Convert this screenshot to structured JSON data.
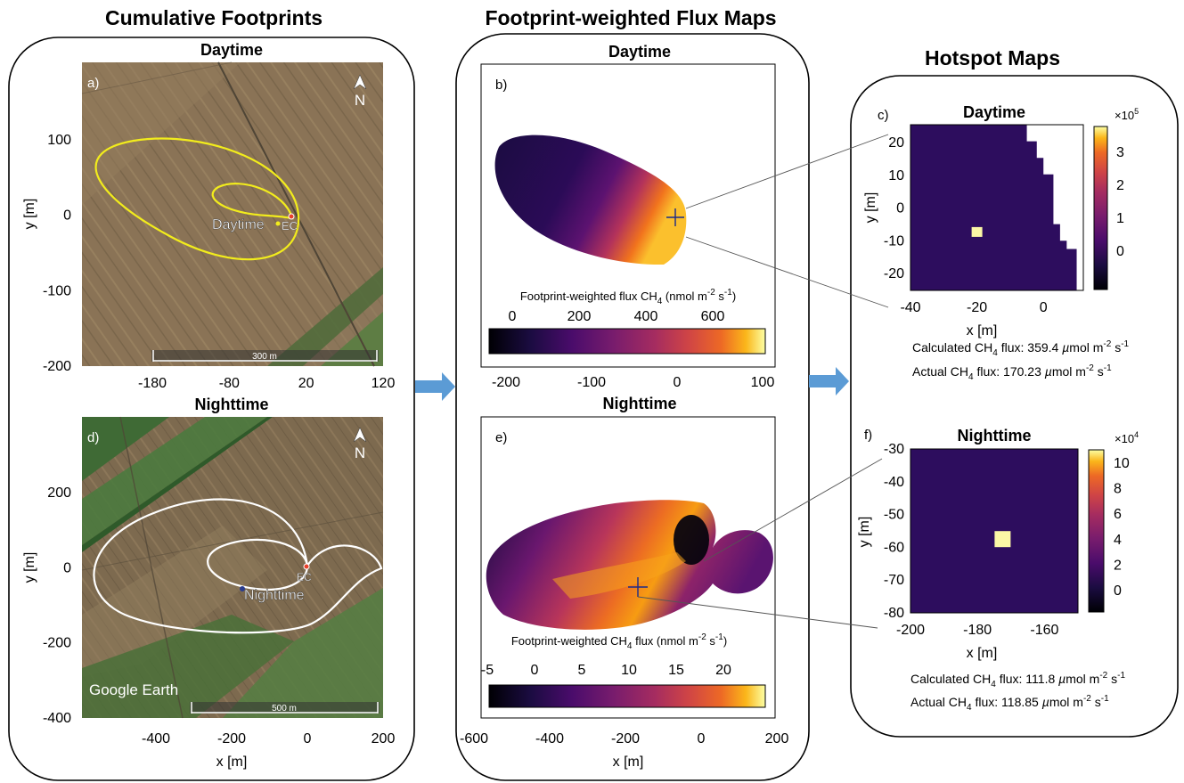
{
  "sections": {
    "footprints": "Cumulative Footprints",
    "flux_maps": "Footprint-weighted Flux Maps",
    "hotspot": "Hotspot Maps"
  },
  "colors": {
    "footprint_day": "#f2ec1c",
    "footprint_night": "#ffffff",
    "arrow": "#5b9bd5",
    "hotspot_background": "#2d0d5e",
    "hotspot_cell": "#fbf7a6"
  },
  "panels": {
    "a": {
      "letter": "a)",
      "title": "Daytime",
      "type": "satellite map",
      "ylabel": "y [m]",
      "xlim": [
        -250,
        140
      ],
      "ylim": [
        -200,
        190
      ],
      "xticks": [
        "-180",
        "-80",
        "20",
        "120"
      ],
      "yticks": [
        "100",
        "0",
        "-100",
        "-200"
      ],
      "north": "N",
      "scalebar": "300 m",
      "marker_labels": [
        "Daytime",
        "EC"
      ]
    },
    "d": {
      "letter": "d)",
      "title": "Nighttime",
      "type": "satellite map",
      "xlabel": "x [m]",
      "ylabel": "y [m]",
      "xlim": [
        -590,
        200
      ],
      "ylim": [
        -400,
        390
      ],
      "xticks": [
        "-400",
        "-200",
        "0",
        "200"
      ],
      "yticks": [
        "200",
        "0",
        "-200",
        "-400"
      ],
      "north": "N",
      "scalebar": "500 m",
      "watermark": "Google Earth",
      "marker_labels": [
        "Nighttime",
        "EC"
      ]
    },
    "b": {
      "letter": "b)",
      "title": "Daytime",
      "colorbar_label_html": "Footprint-weighted flux CH<tspan dy='4' font-size='10'>4</tspan><tspan dy='-4'> (nmol m</tspan><tspan dy='-6' font-size='10'>-2</tspan><tspan dy='6'> s</tspan><tspan dy='-6' font-size='10'>-1</tspan><tspan dy='6'>)</tspan>",
      "colorbar_ticks": [
        "0",
        "200",
        "400",
        "600"
      ],
      "colorbar_range": [
        -70,
        700
      ],
      "xticks": [
        "-200",
        "-100",
        "0",
        "100"
      ],
      "xlim": [
        -270,
        105
      ]
    },
    "e": {
      "letter": "e)",
      "title": "Nighttime",
      "xlabel": "x [m]",
      "colorbar_label_html": "Footprint-weighted CH<tspan dy='4' font-size='10'>4</tspan><tspan dy='-4'> flux (nmol m</tspan><tspan dy='-6' font-size='10'>-2</tspan><tspan dy='6'> s</tspan><tspan dy='-6' font-size='10'>-1</tspan><tspan dy='6'>)</tspan>",
      "colorbar_ticks": [
        "-5",
        "0",
        "5",
        "10",
        "15",
        "20"
      ],
      "colorbar_range": [
        -6,
        24
      ],
      "xticks": [
        "-600",
        "-400",
        "-200",
        "0",
        "200"
      ],
      "xlim": [
        -600,
        200
      ]
    },
    "c": {
      "letter": "c)",
      "title": "Daytime",
      "xlabel": "x [m]",
      "ylabel": "y [m]",
      "xticks": [
        "-40",
        "-20",
        "0"
      ],
      "yticks": [
        "20",
        "10",
        "0",
        "-10",
        "-20"
      ],
      "colorbar_multiplier_html": "×10<tspan dy='-6' font-size='9'>5</tspan>",
      "colorbar_ticks": [
        "3",
        "2",
        "1",
        "0"
      ],
      "calc_html": "Calculated CH<tspan dy='4' font-size='10'>4</tspan><tspan dy='-4'> flux: 359.4 </tspan><tspan font-style='italic'>µ</tspan><tspan>mol m</tspan><tspan dy='-6' font-size='10'>-2</tspan><tspan dy='6'> s</tspan><tspan dy='-6' font-size='10'>-1</tspan>",
      "actual_html": "Actual CH<tspan dy='4' font-size='10'>4</tspan><tspan dy='-4'> flux: 170.23 </tspan><tspan font-style='italic'>µ</tspan><tspan>mol m</tspan><tspan dy='-6' font-size='10'>-2</tspan><tspan dy='6'> s</tspan><tspan dy='-6' font-size='10'>-1</tspan>"
    },
    "f": {
      "letter": "f)",
      "title": "Nighttime",
      "xlabel": "x [m]",
      "ylabel": "y [m]",
      "xticks": [
        "-200",
        "-180",
        "-160"
      ],
      "yticks": [
        "-30",
        "-40",
        "-50",
        "-60",
        "-70",
        "-80"
      ],
      "colorbar_multiplier_html": "×10<tspan dy='-6' font-size='9'>4</tspan>",
      "colorbar_ticks": [
        "10",
        "8",
        "6",
        "4",
        "2",
        "0"
      ],
      "calc_html": "Calculated CH<tspan dy='4' font-size='10'>4</tspan><tspan dy='-4'> flux: 111.8 </tspan><tspan font-style='italic'>µ</tspan><tspan>mol m</tspan><tspan dy='-6' font-size='10'>-2</tspan><tspan dy='6'> s</tspan><tspan dy='-6' font-size='10'>-1</tspan>",
      "actual_html": "Actual CH<tspan dy='4' font-size='10'>4</tspan><tspan dy='-4'> flux: 118.85 </tspan><tspan font-style='italic'>µ</tspan><tspan>mol m</tspan><tspan dy='-6' font-size='10'>-2</tspan><tspan dy='6'> s</tspan><tspan dy='-6' font-size='10'>-1</tspan>"
    }
  },
  "chart_data": [
    {
      "type": "heatmap",
      "panel": "c",
      "title": "Daytime",
      "xlabel": "x [m]",
      "ylabel": "y [m]",
      "xlim": [
        -40,
        12
      ],
      "ylim": [
        -25,
        25
      ],
      "colorbar_range": [
        -50000,
        350000
      ],
      "background_value": 0,
      "cells": [
        {
          "x": -20,
          "y": -7.5,
          "value": 350000
        }
      ],
      "staircase_upper_right_blank": [
        [
          -5,
          25
        ],
        [
          -5,
          20
        ],
        [
          -2,
          20
        ],
        [
          -2,
          15
        ],
        [
          0,
          15
        ],
        [
          0,
          10
        ],
        [
          3,
          10
        ],
        [
          3,
          -5
        ],
        [
          5,
          -5
        ],
        [
          5,
          -10
        ],
        [
          7,
          -10
        ],
        [
          7,
          -12.5
        ],
        [
          10,
          -12.5
        ],
        [
          10,
          -25
        ],
        [
          12,
          -25
        ],
        [
          12,
          25
        ]
      ]
    },
    {
      "type": "heatmap",
      "panel": "f",
      "title": "Nighttime",
      "xlabel": "x [m]",
      "ylabel": "y [m]",
      "xlim": [
        -200,
        -150
      ],
      "ylim": [
        -80,
        -30
      ],
      "colorbar_range": [
        -15000,
        110000
      ],
      "background_value": 0,
      "cells": [
        {
          "x": -172.5,
          "y": -57.5,
          "value": 110000
        }
      ]
    }
  ]
}
